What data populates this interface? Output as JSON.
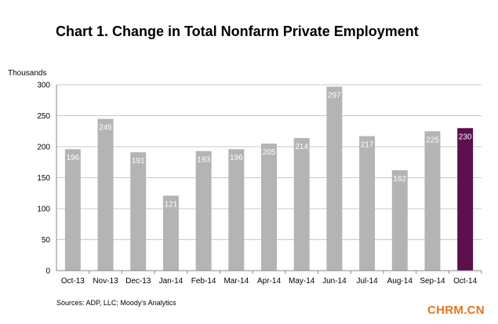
{
  "chart_data": {
    "type": "bar",
    "title": "Chart 1. Change in Total Nonfarm Private Employment",
    "ylabel": "Thousands",
    "xlabel": "",
    "ylim": [
      0,
      300
    ],
    "yticks": [
      0,
      50,
      100,
      150,
      200,
      250,
      300
    ],
    "grid": true,
    "categories": [
      "Oct-13",
      "Nov-13",
      "Dec-13",
      "Jan-14",
      "Feb-14",
      "Mar-14",
      "Apr-14",
      "May-14",
      "Jun-14",
      "Jul-14",
      "Aug-14",
      "Sep-14",
      "Oct-14"
    ],
    "values": [
      196,
      245,
      191,
      121,
      193,
      196,
      205,
      214,
      297,
      217,
      162,
      225,
      230
    ],
    "colors": {
      "bar": "#b4b4b4",
      "highlight_bar": "#5b0f4d",
      "grid": "#c8c8c8",
      "axis": "#888888"
    },
    "highlight_index": 12
  },
  "source": "Sources: ADP, LLC; Moody's Analytics",
  "watermark": "CHRM.CN"
}
